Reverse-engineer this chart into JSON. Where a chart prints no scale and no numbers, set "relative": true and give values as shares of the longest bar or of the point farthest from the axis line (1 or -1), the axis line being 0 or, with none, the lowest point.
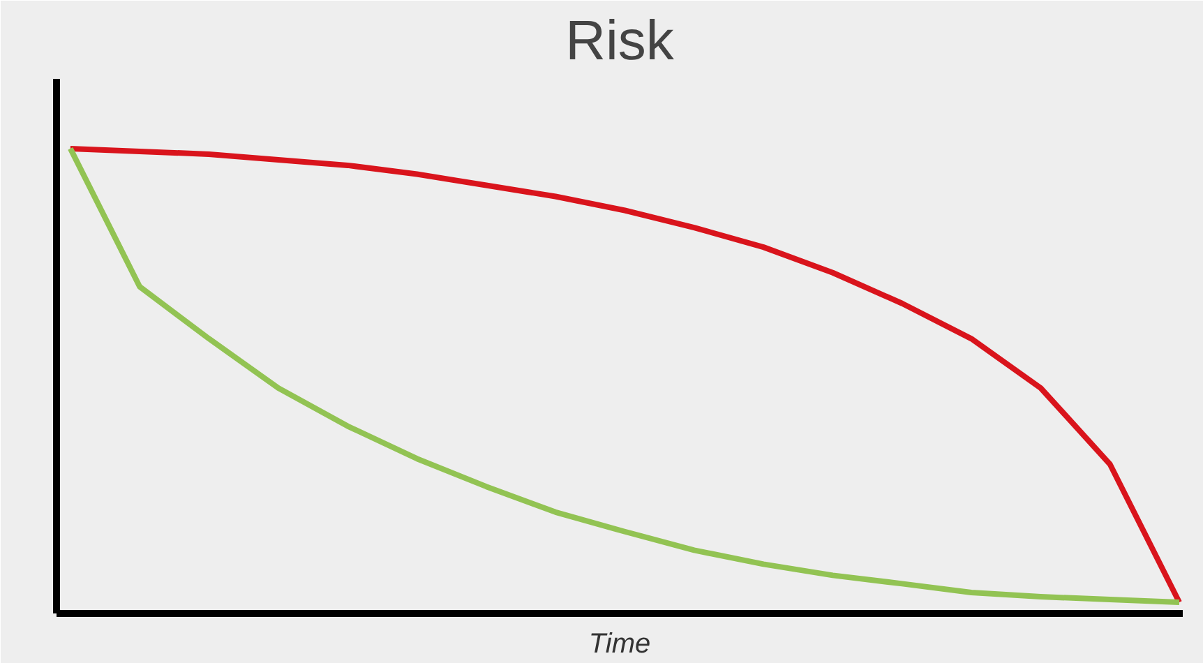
{
  "chart_data": {
    "type": "line",
    "title": "Risk",
    "xlabel": "Time",
    "relative": true,
    "grid": false,
    "categories": [
      null,
      null,
      null,
      null,
      null,
      null,
      null,
      null,
      null,
      null,
      null,
      null,
      null,
      null,
      null,
      null,
      null
    ],
    "series": [
      {
        "color": "#d9141c",
        "values": [
          1,
          0.994,
          0.988,
          0.976,
          0.964,
          0.945,
          0.921,
          0.897,
          0.867,
          0.83,
          0.788,
          0.733,
          0.667,
          0.591,
          0.485,
          0.321,
          0.024
        ]
      },
      {
        "color": "#92c353",
        "values": [
          1,
          0.703,
          0.591,
          0.485,
          0.403,
          0.333,
          0.273,
          0.218,
          0.176,
          0.136,
          0.106,
          0.082,
          0.064,
          0.045,
          0.036,
          0.03,
          0.024
        ]
      }
    ]
  }
}
